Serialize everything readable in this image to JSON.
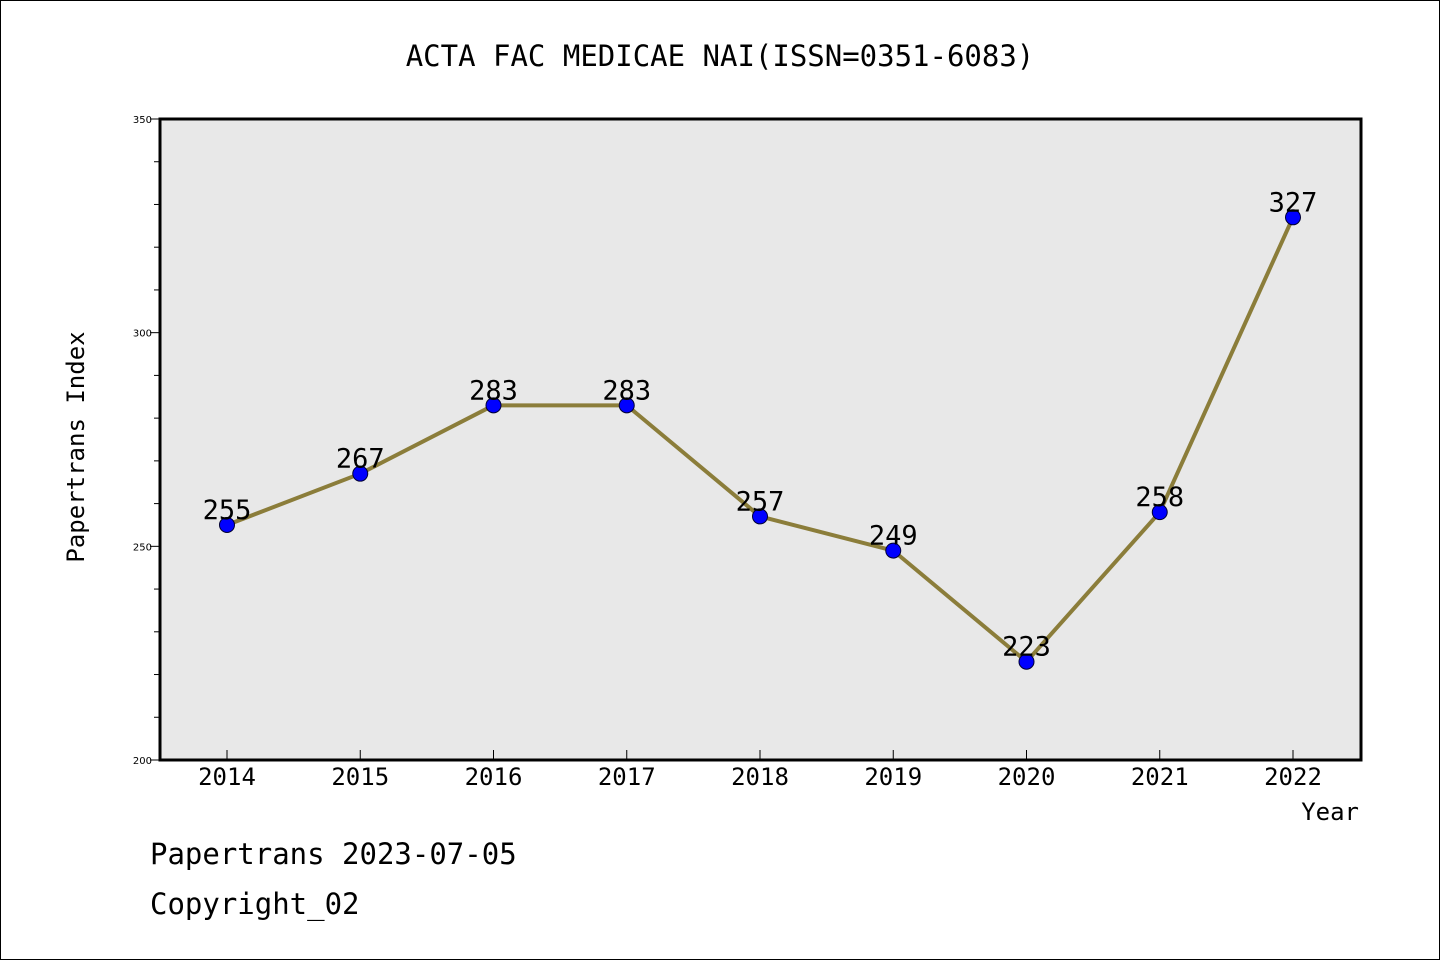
{
  "chart_data": {
    "type": "line",
    "title": "ACTA FAC MEDICAE NAI(ISSN=0351-6083)",
    "xlabel": "Year",
    "ylabel": "Papertrans Index",
    "categories": [
      "2014",
      "2015",
      "2016",
      "2017",
      "2018",
      "2019",
      "2020",
      "2021",
      "2022"
    ],
    "series": [
      {
        "values": [
          255,
          267,
          283,
          283,
          257,
          249,
          223,
          258,
          327
        ]
      }
    ],
    "ylim": [
      200,
      350
    ],
    "yticks": [
      200,
      250,
      300,
      350
    ],
    "grid": false,
    "line_color": "#8B7D3A",
    "marker_color": "#0000FF",
    "plot_background": "#E8E8E8"
  },
  "footer": {
    "date_line": "Papertrans 2023-07-05",
    "copyright": "Copyright_02"
  }
}
